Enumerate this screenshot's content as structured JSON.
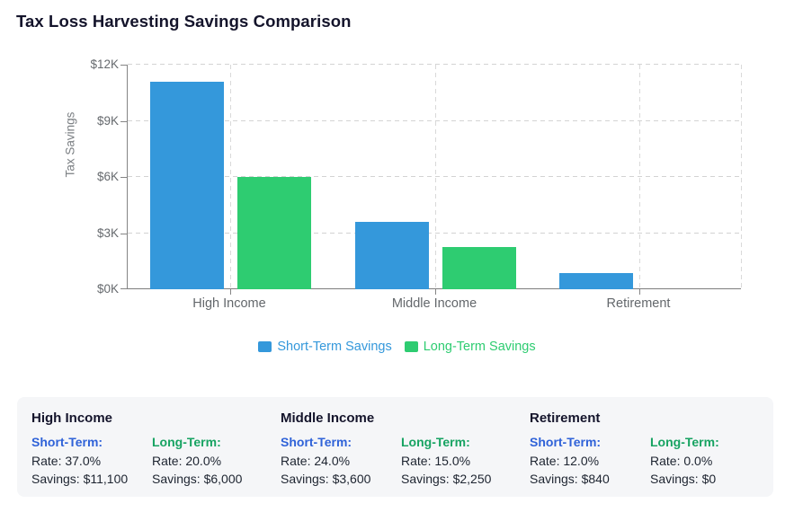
{
  "page": {
    "title": "Tax Loss Harvesting Savings Comparison"
  },
  "chart_data": {
    "type": "bar",
    "title": "Tax Loss Harvesting Savings Comparison",
    "categories": [
      "High Income",
      "Middle Income",
      "Retirement"
    ],
    "series": [
      {
        "name": "Short-Term Savings",
        "color": "#3498db",
        "values": [
          11100,
          3600,
          840
        ]
      },
      {
        "name": "Long-Term Savings",
        "color": "#2ecc71",
        "values": [
          6000,
          2250,
          0
        ]
      }
    ],
    "xlabel": "",
    "ylabel": "Tax Savings",
    "ylim": [
      0,
      12000
    ],
    "yticks": [
      0,
      3000,
      6000,
      9000,
      12000
    ],
    "ytick_labels": [
      "$0K",
      "$3K",
      "$6K",
      "$9K",
      "$12K"
    ],
    "grid": true,
    "grid_style": "dashed",
    "legend_position": "bottom"
  },
  "details": {
    "cards": [
      {
        "heading": "High Income",
        "short": {
          "label": "Short-Term:",
          "rate": "Rate: 37.0%",
          "savings": "Savings: $11,100"
        },
        "long": {
          "label": "Long-Term:",
          "rate": "Rate: 20.0%",
          "savings": "Savings: $6,000"
        }
      },
      {
        "heading": "Middle Income",
        "short": {
          "label": "Short-Term:",
          "rate": "Rate: 24.0%",
          "savings": "Savings: $3,600"
        },
        "long": {
          "label": "Long-Term:",
          "rate": "Rate: 15.0%",
          "savings": "Savings: $2,250"
        }
      },
      {
        "heading": "Retirement",
        "short": {
          "label": "Short-Term:",
          "rate": "Rate: 12.0%",
          "savings": "Savings: $840"
        },
        "long": {
          "label": "Long-Term:",
          "rate": "Rate: 0.0%",
          "savings": "Savings: $0"
        }
      }
    ]
  },
  "colors": {
    "short_term_bar": "#3498db",
    "long_term_bar": "#2ecc71",
    "card_short_label": "#2f62d8",
    "card_long_label": "#17a362",
    "panel_background": "#f5f6f8",
    "axis": "#858585",
    "grid": "#d3d3d3"
  }
}
